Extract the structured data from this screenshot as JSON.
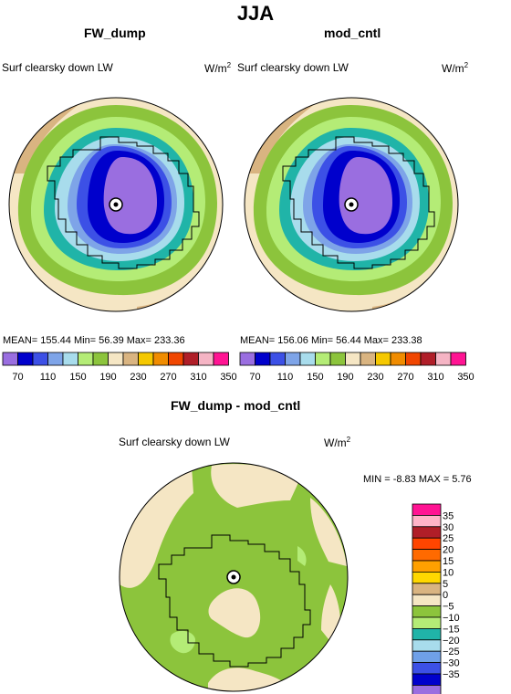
{
  "page": {
    "title": "JJA"
  },
  "colors": {
    "map_bins": [
      "#9a6ee0",
      "#0000cc",
      "#3c50e6",
      "#7ea4e8",
      "#a8dcec",
      "#b4ec76",
      "#8cc43c",
      "#f5e6c4",
      "#d9b481",
      "#f5c800",
      "#f08c00",
      "#f04600",
      "#b01e28",
      "#f5b4c4",
      "#ff1493"
    ],
    "diff_bins": [
      "#9a6ee0",
      "#0000cc",
      "#3c50e6",
      "#6fa0e8",
      "#a8dcec",
      "#20b4a8",
      "#b4ec76",
      "#8cc43c",
      "#f5e6c4",
      "#d9b481",
      "#ffd700",
      "#ffa000",
      "#ff6a00",
      "#ff4500",
      "#b01e28",
      "#ffb4c8",
      "#ff1493"
    ]
  },
  "chart_data": [
    {
      "type": "heatmap",
      "projection": "polar-stereographic",
      "title": "FW_dump",
      "subtitle": "Surf clearsky down LW",
      "units": "W/m2",
      "stats": {
        "mean": 155.44,
        "min": 56.39,
        "max": 233.36
      },
      "stats_text": "MEAN=  155.44    Min=    56.39    Max=  233.36",
      "colorbar": {
        "levels": [
          70,
          90,
          110,
          130,
          150,
          170,
          190,
          210,
          230,
          250,
          270,
          290,
          310,
          330,
          350
        ],
        "tick_labels": [
          "70",
          "110",
          "150",
          "190",
          "230",
          "270",
          "310",
          "350"
        ]
      }
    },
    {
      "type": "heatmap",
      "projection": "polar-stereographic",
      "title": "mod_cntl",
      "subtitle": "Surf clearsky down LW",
      "units": "W/m2",
      "stats": {
        "mean": 156.06,
        "min": 56.44,
        "max": 233.38
      },
      "stats_text": "MEAN=  156.06    Min=    56.44    Max=  233.38",
      "colorbar": {
        "levels": [
          70,
          90,
          110,
          130,
          150,
          170,
          190,
          210,
          230,
          250,
          270,
          290,
          310,
          330,
          350
        ],
        "tick_labels": [
          "70",
          "110",
          "150",
          "190",
          "230",
          "270",
          "310",
          "350"
        ]
      }
    },
    {
      "type": "heatmap",
      "projection": "polar-stereographic",
      "title": "FW_dump - mod_cntl",
      "subtitle": "Surf clearsky down LW",
      "units": "W/m2",
      "stats": {
        "min": -8.83,
        "max": 5.76
      },
      "stats_text": "MIN =   -8.83  MAX =     5.76",
      "colorbar": {
        "levels": [
          -35,
          -30,
          -25,
          -20,
          -15,
          -10,
          -5,
          0,
          5,
          10,
          15,
          20,
          25,
          30,
          35
        ],
        "tick_labels": [
          "35",
          "30",
          "25",
          "20",
          "15",
          "10",
          "5",
          "0",
          "−5",
          "−10",
          "−15",
          "−20",
          "−25",
          "−30",
          "−35"
        ]
      }
    }
  ]
}
